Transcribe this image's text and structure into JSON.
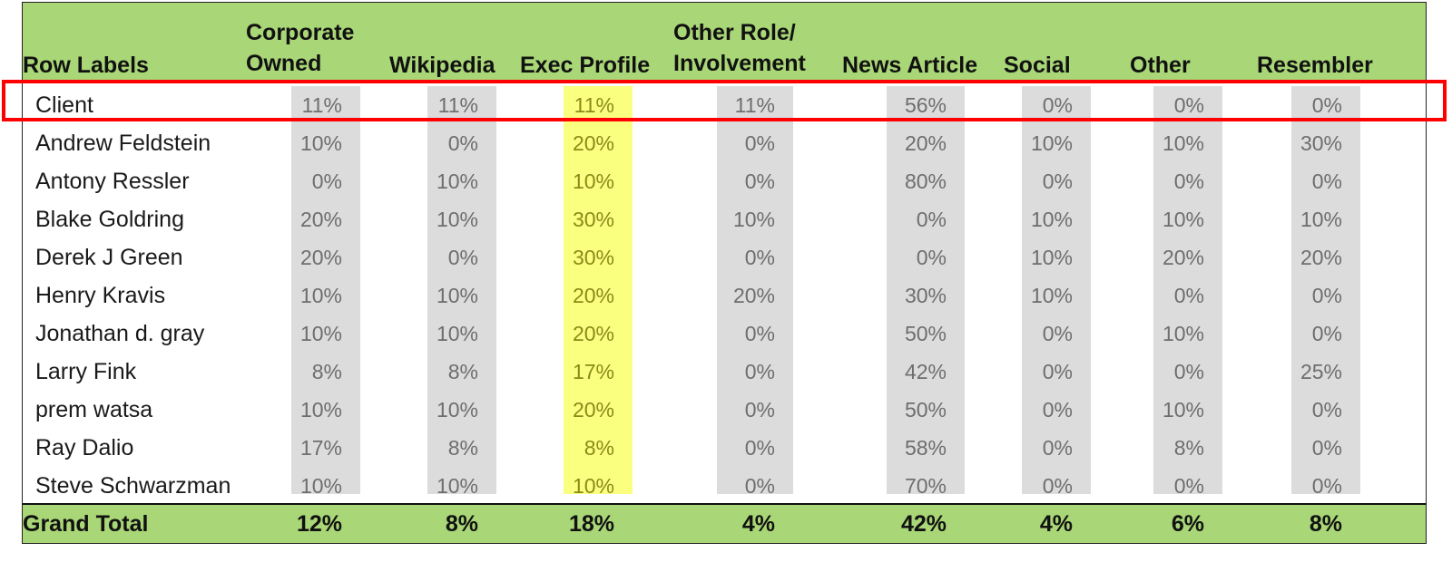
{
  "header": {
    "row_labels": "Row Labels",
    "columns": [
      {
        "line1": "Corporate",
        "line2": "Owned"
      },
      {
        "line1": "",
        "line2": "Wikipedia"
      },
      {
        "line1": "",
        "line2": "Exec Profile"
      },
      {
        "line1": "Other Role/",
        "line2": "Involvement"
      },
      {
        "line1": "",
        "line2": "News Article"
      },
      {
        "line1": "",
        "line2": "Social"
      },
      {
        "line1": "",
        "line2": "Other"
      },
      {
        "line1": "",
        "line2": "Resembler"
      }
    ]
  },
  "rows": [
    {
      "label": "Client",
      "values": [
        "11%",
        "11%",
        "11%",
        "11%",
        "56%",
        "0%",
        "0%",
        "0%"
      ]
    },
    {
      "label": "Andrew Feldstein",
      "values": [
        "10%",
        "0%",
        "20%",
        "0%",
        "20%",
        "10%",
        "10%",
        "30%"
      ]
    },
    {
      "label": "Antony Ressler",
      "values": [
        "0%",
        "10%",
        "10%",
        "0%",
        "80%",
        "0%",
        "0%",
        "0%"
      ]
    },
    {
      "label": "Blake Goldring",
      "values": [
        "20%",
        "10%",
        "30%",
        "10%",
        "0%",
        "10%",
        "10%",
        "10%"
      ]
    },
    {
      "label": "Derek J Green",
      "values": [
        "20%",
        "0%",
        "30%",
        "0%",
        "0%",
        "10%",
        "20%",
        "20%"
      ]
    },
    {
      "label": "Henry Kravis",
      "values": [
        "10%",
        "10%",
        "20%",
        "20%",
        "30%",
        "10%",
        "0%",
        "0%"
      ]
    },
    {
      "label": "Jonathan d. gray",
      "values": [
        "10%",
        "10%",
        "20%",
        "0%",
        "50%",
        "0%",
        "10%",
        "0%"
      ]
    },
    {
      "label": "Larry Fink",
      "values": [
        "8%",
        "8%",
        "17%",
        "0%",
        "42%",
        "0%",
        "0%",
        "25%"
      ]
    },
    {
      "label": "prem watsa",
      "values": [
        "10%",
        "10%",
        "20%",
        "0%",
        "50%",
        "0%",
        "10%",
        "0%"
      ]
    },
    {
      "label": "Ray Dalio",
      "values": [
        "17%",
        "8%",
        "8%",
        "0%",
        "58%",
        "0%",
        "8%",
        "0%"
      ]
    },
    {
      "label": "Steve Schwarzman",
      "values": [
        "10%",
        "10%",
        "10%",
        "0%",
        "70%",
        "0%",
        "0%",
        "0%"
      ]
    }
  ],
  "grand_total": {
    "label": "Grand Total",
    "values": [
      "12%",
      "8%",
      "18%",
      "4%",
      "42%",
      "4%",
      "6%",
      "8%"
    ]
  },
  "colors": {
    "header_green": "#a9d676",
    "column_shade": "#dcdcdc",
    "exec_profile_highlight": "#fbff7f",
    "selection_box": "#ff0000"
  }
}
